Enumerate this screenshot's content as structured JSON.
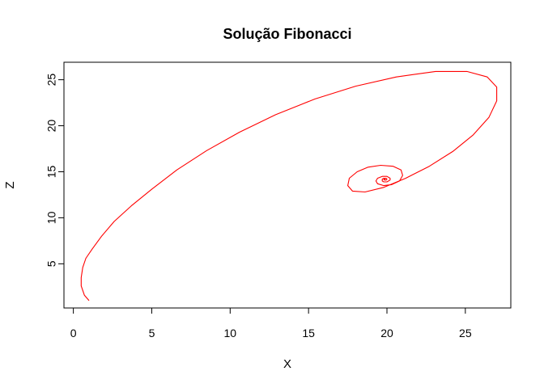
{
  "chart_data": {
    "type": "line",
    "title": "Solução Fibonacci",
    "xlabel": "X",
    "ylabel": "Z",
    "xlim": [
      -0.6,
      27.9
    ],
    "ylim": [
      0.2,
      26.9
    ],
    "x_ticks": [
      0,
      5,
      10,
      15,
      20,
      25
    ],
    "y_ticks": [
      5,
      10,
      15,
      20,
      25
    ],
    "grid": false,
    "series": [
      {
        "color": "#ff0000",
        "points": [
          [
            1.0,
            1.0
          ],
          [
            0.7,
            1.6
          ],
          [
            0.5,
            2.6
          ],
          [
            0.5,
            3.5
          ],
          [
            0.6,
            4.6
          ],
          [
            0.8,
            5.6
          ],
          [
            1.2,
            6.6
          ],
          [
            1.8,
            8.0
          ],
          [
            2.6,
            9.6
          ],
          [
            3.7,
            11.3
          ],
          [
            5.0,
            13.1
          ],
          [
            6.6,
            15.2
          ],
          [
            8.5,
            17.3
          ],
          [
            10.6,
            19.3
          ],
          [
            12.9,
            21.2
          ],
          [
            15.4,
            22.9
          ],
          [
            18.0,
            24.3
          ],
          [
            20.6,
            25.3
          ],
          [
            23.1,
            25.9
          ],
          [
            25.1,
            25.9
          ],
          [
            26.4,
            25.3
          ],
          [
            27.0,
            24.2
          ],
          [
            27.0,
            22.7
          ],
          [
            26.5,
            20.9
          ],
          [
            25.5,
            19.0
          ],
          [
            24.2,
            17.2
          ],
          [
            22.7,
            15.6
          ],
          [
            21.2,
            14.3
          ],
          [
            19.8,
            13.3
          ],
          [
            18.6,
            12.8
          ],
          [
            17.8,
            12.9
          ],
          [
            17.5,
            13.5
          ],
          [
            17.6,
            14.3
          ],
          [
            18.1,
            15.0
          ],
          [
            18.8,
            15.5
          ],
          [
            19.6,
            15.7
          ],
          [
            20.4,
            15.6
          ],
          [
            20.9,
            15.2
          ],
          [
            21.0,
            14.6
          ],
          [
            20.8,
            14.0
          ],
          [
            20.3,
            13.6
          ],
          [
            19.8,
            13.5
          ],
          [
            19.4,
            13.7
          ],
          [
            19.3,
            14.0
          ],
          [
            19.4,
            14.3
          ],
          [
            19.7,
            14.5
          ],
          [
            20.0,
            14.5
          ],
          [
            20.2,
            14.3
          ],
          [
            20.2,
            14.1
          ],
          [
            20.0,
            13.9
          ],
          [
            19.8,
            13.9
          ],
          [
            19.7,
            14.0
          ],
          [
            19.7,
            14.2
          ],
          [
            19.8,
            14.3
          ],
          [
            19.95,
            14.3
          ],
          [
            20.0,
            14.2
          ],
          [
            19.95,
            14.1
          ],
          [
            19.85,
            14.1
          ],
          [
            19.8,
            14.15
          ],
          [
            19.85,
            14.2
          ],
          [
            19.9,
            14.2
          ]
        ]
      }
    ]
  }
}
